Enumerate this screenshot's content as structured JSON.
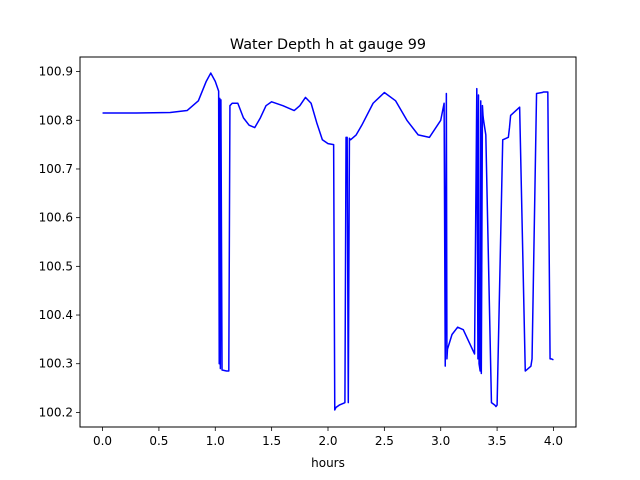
{
  "chart_data": {
    "type": "line",
    "title": "Water Depth h at gauge 99",
    "xlabel": "hours",
    "ylabel": "",
    "xlim": [
      -0.2,
      4.2
    ],
    "ylim": [
      100.17,
      100.93
    ],
    "xticks": [
      0.0,
      0.5,
      1.0,
      1.5,
      2.0,
      2.5,
      3.0,
      3.5,
      4.0
    ],
    "xtick_labels": [
      "0.0",
      "0.5",
      "1.0",
      "1.5",
      "2.0",
      "2.5",
      "3.0",
      "3.5",
      "4.0"
    ],
    "yticks": [
      100.2,
      100.3,
      100.4,
      100.5,
      100.6,
      100.7,
      100.8,
      100.9
    ],
    "ytick_labels": [
      "100.2",
      "100.3",
      "100.4",
      "100.5",
      "100.6",
      "100.7",
      "100.8",
      "100.9"
    ],
    "grid": false,
    "line_color": "#0000ff",
    "series": [
      {
        "x": [
          0.0,
          0.3,
          0.6,
          0.75,
          0.85,
          0.92,
          0.96,
          1.0,
          1.03,
          1.035,
          1.04,
          1.045,
          1.05,
          1.06,
          1.1,
          1.12,
          1.13,
          1.15,
          1.2,
          1.25,
          1.3,
          1.35,
          1.4,
          1.45,
          1.5,
          1.6,
          1.7,
          1.75,
          1.8,
          1.85,
          1.9,
          1.95,
          2.0,
          2.05,
          2.06,
          2.07,
          2.1,
          2.15,
          2.16,
          2.17,
          2.18,
          2.19,
          2.2,
          2.25,
          2.3,
          2.4,
          2.5,
          2.6,
          2.7,
          2.8,
          2.9,
          3.0,
          3.03,
          3.04,
          3.05,
          3.055,
          3.06,
          3.1,
          3.15,
          3.2,
          3.25,
          3.3,
          3.32,
          3.33,
          3.335,
          3.34,
          3.35,
          3.355,
          3.36,
          3.37,
          3.375,
          3.38,
          3.39,
          3.4,
          3.45,
          3.48,
          3.49,
          3.5,
          3.55,
          3.6,
          3.61,
          3.62,
          3.7,
          3.75,
          3.8,
          3.81,
          3.85,
          3.9,
          3.91,
          3.95,
          3.97,
          3.98,
          4.0
        ],
        "y": [
          100.815,
          100.815,
          100.816,
          100.82,
          100.84,
          100.88,
          100.897,
          100.88,
          100.86,
          100.3,
          100.845,
          100.29,
          100.842,
          100.287,
          100.285,
          100.285,
          100.83,
          100.835,
          100.835,
          100.805,
          100.79,
          100.785,
          100.805,
          100.83,
          100.838,
          100.83,
          100.82,
          100.83,
          100.847,
          100.835,
          100.795,
          100.76,
          100.752,
          100.75,
          100.205,
          100.21,
          100.215,
          100.22,
          100.765,
          100.765,
          100.22,
          100.763,
          100.76,
          100.77,
          100.79,
          100.835,
          100.857,
          100.84,
          100.8,
          100.77,
          100.765,
          100.8,
          100.835,
          100.295,
          100.855,
          100.31,
          100.33,
          100.36,
          100.375,
          100.37,
          100.345,
          100.32,
          100.865,
          100.31,
          100.852,
          100.3,
          100.285,
          100.84,
          100.28,
          100.83,
          100.81,
          100.8,
          100.785,
          100.77,
          100.22,
          100.215,
          100.212,
          100.215,
          100.76,
          100.765,
          100.785,
          100.81,
          100.827,
          100.285,
          100.295,
          100.31,
          100.855,
          100.857,
          100.858,
          100.858,
          100.31,
          100.31,
          100.308
        ]
      }
    ]
  }
}
